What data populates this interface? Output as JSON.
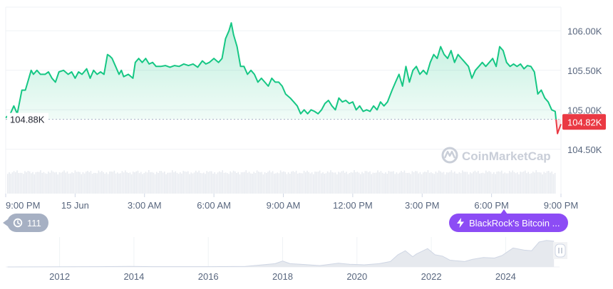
{
  "chart_data": {
    "type": "area",
    "price": {
      "x_ticks": [
        "9:00 PM",
        "15 Jun",
        "3:00 AM",
        "6:00 AM",
        "9:00 AM",
        "12:00 PM",
        "3:00 PM",
        "6:00 PM",
        "9:00 PM"
      ],
      "x_range_hours": [
        0,
        24
      ],
      "y_ticks": [
        "106.00K",
        "105.50K",
        "105.00K",
        "104.50K"
      ],
      "y_tick_values": [
        106000,
        105500,
        105000,
        104500
      ],
      "ylim": [
        104300,
        106300
      ],
      "baseline_value": 104880,
      "baseline_label": "104.88K",
      "current_value": 104820,
      "current_label": "104.82K",
      "color_up": "#16c784",
      "color_down": "#ea3943",
      "grid": true,
      "series": [
        {
          "values": [
            [
              0.0,
              104900
            ],
            [
              0.2,
              104950
            ],
            [
              0.35,
              105050
            ],
            [
              0.5,
              104950
            ],
            [
              0.7,
              105250
            ],
            [
              0.85,
              105250
            ],
            [
              1.0,
              105400
            ],
            [
              1.1,
              105500
            ],
            [
              1.2,
              105450
            ],
            [
              1.35,
              105500
            ],
            [
              1.5,
              105450
            ],
            [
              1.7,
              105450
            ],
            [
              1.85,
              105480
            ],
            [
              2.0,
              105400
            ],
            [
              2.15,
              105350
            ],
            [
              2.3,
              105480
            ],
            [
              2.5,
              105500
            ],
            [
              2.7,
              105450
            ],
            [
              2.85,
              105480
            ],
            [
              3.0,
              105400
            ],
            [
              3.15,
              105480
            ],
            [
              3.3,
              105450
            ],
            [
              3.5,
              105520
            ],
            [
              3.65,
              105400
            ],
            [
              3.8,
              105500
            ],
            [
              3.95,
              105450
            ],
            [
              4.1,
              105480
            ],
            [
              4.25,
              105450
            ],
            [
              4.4,
              105700
            ],
            [
              4.5,
              105680
            ],
            [
              4.6,
              105650
            ],
            [
              4.75,
              105550
            ],
            [
              4.9,
              105450
            ],
            [
              5.0,
              105500
            ],
            [
              5.1,
              105420
            ],
            [
              5.3,
              105450
            ],
            [
              5.5,
              105400
            ],
            [
              5.6,
              105600
            ],
            [
              5.75,
              105650
            ],
            [
              5.9,
              105600
            ],
            [
              6.05,
              105650
            ],
            [
              6.2,
              105580
            ],
            [
              6.35,
              105600
            ],
            [
              6.5,
              105550
            ],
            [
              6.7,
              105550
            ],
            [
              6.9,
              105560
            ],
            [
              7.1,
              105540
            ],
            [
              7.3,
              105560
            ],
            [
              7.5,
              105550
            ],
            [
              7.7,
              105580
            ],
            [
              7.9,
              105560
            ],
            [
              8.1,
              105580
            ],
            [
              8.3,
              105540
            ],
            [
              8.5,
              105620
            ],
            [
              8.65,
              105580
            ],
            [
              8.8,
              105600
            ],
            [
              9.0,
              105650
            ],
            [
              9.2,
              105600
            ],
            [
              9.35,
              105650
            ],
            [
              9.5,
              105900
            ],
            [
              9.65,
              106000
            ],
            [
              9.75,
              106100
            ],
            [
              9.85,
              105950
            ],
            [
              10.0,
              105800
            ],
            [
              10.15,
              105550
            ],
            [
              10.3,
              105550
            ],
            [
              10.45,
              105450
            ],
            [
              10.6,
              105500
            ],
            [
              10.75,
              105450
            ],
            [
              10.9,
              105350
            ],
            [
              11.05,
              105400
            ],
            [
              11.2,
              105350
            ],
            [
              11.35,
              105300
            ],
            [
              11.5,
              105400
            ],
            [
              11.65,
              105350
            ],
            [
              11.8,
              105350
            ],
            [
              11.95,
              105300
            ],
            [
              12.1,
              105200
            ],
            [
              12.3,
              105150
            ],
            [
              12.45,
              105100
            ],
            [
              12.6,
              105050
            ],
            [
              12.75,
              104950
            ],
            [
              12.9,
              105000
            ],
            [
              13.05,
              104950
            ],
            [
              13.2,
              105000
            ],
            [
              13.35,
              104980
            ],
            [
              13.5,
              104950
            ],
            [
              13.65,
              105000
            ],
            [
              13.8,
              105080
            ],
            [
              13.95,
              105120
            ],
            [
              14.1,
              105050
            ],
            [
              14.25,
              105000
            ],
            [
              14.4,
              105150
            ],
            [
              14.55,
              105100
            ],
            [
              14.7,
              105120
            ],
            [
              14.85,
              105080
            ],
            [
              15.0,
              105100
            ],
            [
              15.15,
              105000
            ],
            [
              15.3,
              105050
            ],
            [
              15.45,
              104980
            ],
            [
              15.6,
              105000
            ],
            [
              15.75,
              104980
            ],
            [
              15.9,
              105050
            ],
            [
              16.05,
              105000
            ],
            [
              16.2,
              105100
            ],
            [
              16.35,
              105050
            ],
            [
              16.5,
              105100
            ],
            [
              16.7,
              105250
            ],
            [
              16.85,
              105350
            ],
            [
              17.0,
              105450
            ],
            [
              17.15,
              105300
            ],
            [
              17.3,
              105550
            ],
            [
              17.45,
              105350
            ],
            [
              17.6,
              105500
            ],
            [
              17.75,
              105550
            ],
            [
              17.9,
              105450
            ],
            [
              18.05,
              105500
            ],
            [
              18.2,
              105450
            ],
            [
              18.35,
              105600
            ],
            [
              18.5,
              105700
            ],
            [
              18.65,
              105650
            ],
            [
              18.8,
              105800
            ],
            [
              18.95,
              105700
            ],
            [
              19.1,
              105650
            ],
            [
              19.25,
              105750
            ],
            [
              19.4,
              105600
            ],
            [
              19.55,
              105700
            ],
            [
              19.7,
              105650
            ],
            [
              19.85,
              105600
            ],
            [
              20.0,
              105550
            ],
            [
              20.15,
              105400
            ],
            [
              20.3,
              105500
            ],
            [
              20.45,
              105550
            ],
            [
              20.6,
              105600
            ],
            [
              20.75,
              105550
            ],
            [
              20.9,
              105600
            ],
            [
              21.05,
              105650
            ],
            [
              21.2,
              105550
            ],
            [
              21.35,
              105800
            ],
            [
              21.5,
              105750
            ],
            [
              21.65,
              105600
            ],
            [
              21.8,
              105550
            ],
            [
              21.95,
              105580
            ],
            [
              22.1,
              105550
            ],
            [
              22.25,
              105580
            ],
            [
              22.4,
              105520
            ],
            [
              22.55,
              105560
            ],
            [
              22.7,
              105550
            ],
            [
              22.85,
              105480
            ],
            [
              23.0,
              105200
            ],
            [
              23.15,
              105250
            ],
            [
              23.3,
              105150
            ],
            [
              23.45,
              105100
            ],
            [
              23.6,
              105000
            ],
            [
              23.75,
              104980
            ],
            [
              23.85,
              104700
            ],
            [
              24.0,
              104820
            ]
          ]
        }
      ]
    },
    "history": {
      "x_ticks": [
        "2012",
        "2014",
        "2016",
        "2018",
        "2020",
        "2022",
        "2024"
      ],
      "xlim": [
        2010.55,
        2025.45
      ],
      "values": [
        [
          2010.6,
          0
        ],
        [
          2013.0,
          0.01
        ],
        [
          2013.9,
          0.02
        ],
        [
          2014.5,
          0.01
        ],
        [
          2016.0,
          0.01
        ],
        [
          2017.0,
          0.02
        ],
        [
          2017.8,
          0.12
        ],
        [
          2018.0,
          0.22
        ],
        [
          2018.2,
          0.12
        ],
        [
          2018.6,
          0.09
        ],
        [
          2019.0,
          0.05
        ],
        [
          2019.5,
          0.14
        ],
        [
          2019.8,
          0.1
        ],
        [
          2020.2,
          0.08
        ],
        [
          2020.6,
          0.12
        ],
        [
          2020.9,
          0.2
        ],
        [
          2021.1,
          0.45
        ],
        [
          2021.3,
          0.6
        ],
        [
          2021.5,
          0.38
        ],
        [
          2021.6,
          0.48
        ],
        [
          2021.9,
          0.68
        ],
        [
          2022.1,
          0.45
        ],
        [
          2022.3,
          0.4
        ],
        [
          2022.5,
          0.25
        ],
        [
          2022.9,
          0.2
        ],
        [
          2023.1,
          0.28
        ],
        [
          2023.4,
          0.35
        ],
        [
          2023.7,
          0.33
        ],
        [
          2023.9,
          0.42
        ],
        [
          2024.2,
          0.7
        ],
        [
          2024.5,
          0.62
        ],
        [
          2024.7,
          0.6
        ],
        [
          2024.9,
          0.92
        ],
        [
          2025.1,
          0.98
        ],
        [
          2025.3,
          0.95
        ]
      ],
      "count_icon": "history-icon",
      "count": "111"
    },
    "news": {
      "icon": "lightning-icon",
      "label": "BlackRock's Bitcoin ..."
    },
    "watermark": "CoinMarketCap",
    "volume_color": "#e8ebf0"
  }
}
